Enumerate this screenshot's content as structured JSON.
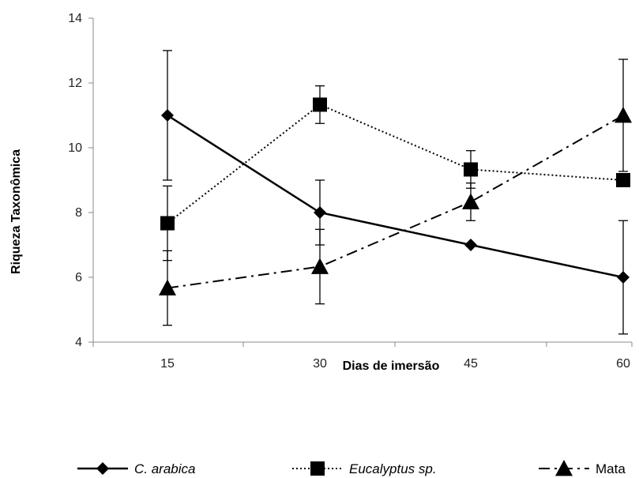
{
  "chart_data": {
    "type": "line",
    "xlabel": "Dias de imersão",
    "ylabel": "Riqueza Taxonômica",
    "x": [
      15,
      30,
      45,
      60
    ],
    "xticks": [
      "15",
      "30",
      "45",
      "60"
    ],
    "ylim": [
      4,
      14
    ],
    "yticks": [
      "4",
      "6",
      "8",
      "10",
      "12",
      "14"
    ],
    "grid": false,
    "legend_position": "bottom",
    "series": [
      {
        "name": "C. arabica",
        "italic": true,
        "marker": "diamond",
        "line_style": "solid",
        "values": [
          11,
          8,
          7,
          6
        ],
        "error": [
          2,
          1,
          0,
          1.75
        ]
      },
      {
        "name": "Eucalyptus sp.",
        "italic": true,
        "marker": "square",
        "line_style": "dotted",
        "values": [
          7.67,
          11.33,
          9.33,
          9
        ],
        "error": [
          1.15,
          0.58,
          0.58,
          0
        ]
      },
      {
        "name": "Mata",
        "italic": false,
        "marker": "triangle",
        "line_style": "dash-dot",
        "values": [
          5.67,
          6.33,
          8.33,
          11
        ],
        "error": [
          1.15,
          1.15,
          0.58,
          1.73
        ]
      }
    ]
  }
}
